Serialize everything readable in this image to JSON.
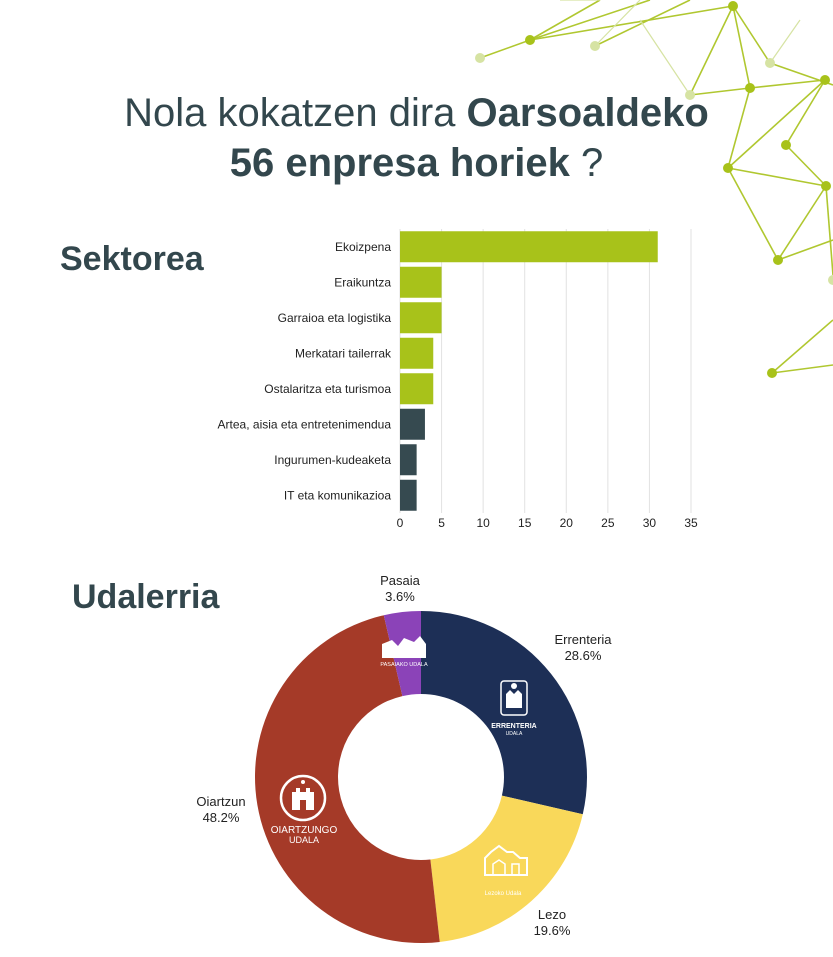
{
  "heading": {
    "line1_regular": "Nola kokatzen dira ",
    "line1_bold": "Oarsoaldeko",
    "line2_bold": "56 enpresa horiek",
    "line2_regular": " ?"
  },
  "colors": {
    "text_dark": "#33474d",
    "bar_green": "#a8c21a",
    "bar_dark": "#364a50",
    "errenteria": "#1d2f56",
    "lezo": "#f9d85a",
    "oiartzun": "#a53a28",
    "pasaia": "#8b43b8",
    "network": "#a8c21a"
  },
  "chart_data": [
    {
      "type": "bar",
      "orientation": "horizontal",
      "title": "Sektorea",
      "categories": [
        "Ekoizpena",
        "Eraikuntza",
        "Garraioa eta logistika",
        "Merkatari tailerrak",
        "Ostalaritza eta turismoa",
        "Artea, aisia eta entretenimendua",
        "Ingurumen-kudeaketa",
        "IT eta komunikazioa"
      ],
      "values": [
        31,
        5,
        5,
        4,
        4,
        3,
        2,
        2
      ],
      "bar_colors": [
        "#a8c21a",
        "#a8c21a",
        "#a8c21a",
        "#a8c21a",
        "#a8c21a",
        "#364a50",
        "#364a50",
        "#364a50"
      ],
      "xlim": [
        0,
        35
      ],
      "xticks": [
        "0",
        "5",
        "10",
        "15",
        "20",
        "25",
        "30",
        "35"
      ],
      "grid": true
    },
    {
      "type": "pie",
      "donut": true,
      "title": "Udalerria",
      "slices": [
        {
          "label": "Errenteria",
          "pct_label": "28.6%",
          "value": 28.6,
          "color": "#1d2f56",
          "logo": "ERRENTERIA",
          "logo_sub": "UDALA"
        },
        {
          "label": "Lezo",
          "pct_label": "19.6%",
          "value": 19.6,
          "color": "#f9d85a",
          "logo": "Lezoko Udala"
        },
        {
          "label": "Oiartzun",
          "pct_label": "48.2%",
          "value": 48.2,
          "color": "#a53a28",
          "logo": "OIARTZUNGO",
          "logo_sub": "UDALA"
        },
        {
          "label": "Pasaia",
          "pct_label": "3.6%",
          "value": 3.6,
          "color": "#8b43b8",
          "logo": "PASAIAKO UDALA"
        }
      ]
    }
  ]
}
